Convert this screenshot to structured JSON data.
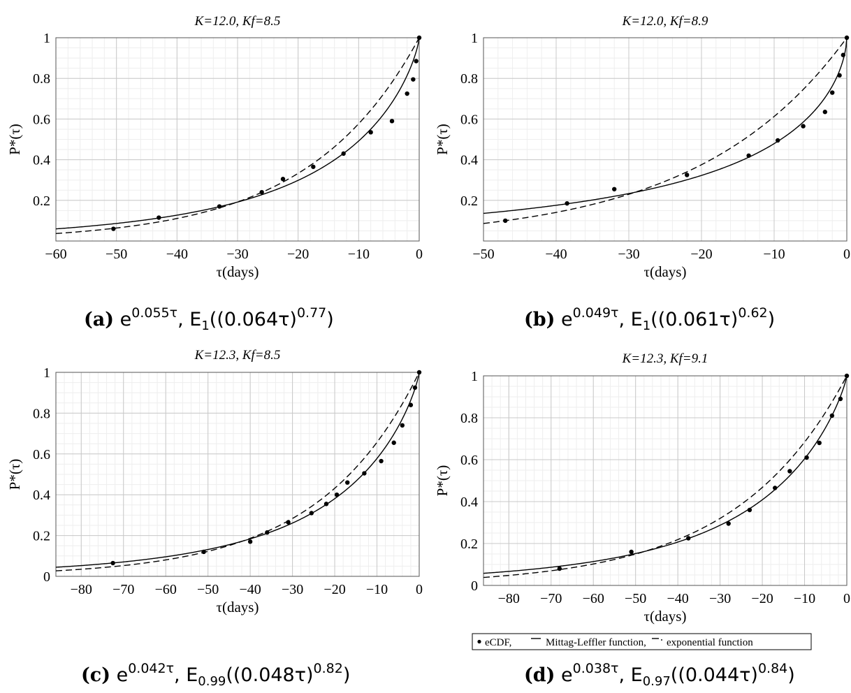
{
  "chart_data": [
    {
      "type": "scatter",
      "title": "K=12.0, Kf=8.5",
      "xlabel": "τ(days)",
      "ylabel": "P*(τ)",
      "xlim": [
        -60,
        0
      ],
      "ylim": [
        0,
        1
      ],
      "xticks": [
        -60,
        -50,
        -40,
        -30,
        -20,
        -10,
        0
      ],
      "yticks": [
        0.2,
        0.4,
        0.6,
        0.8,
        1
      ],
      "ytick_labels": [
        "0.2",
        "0.4",
        "0.6",
        "0.8",
        "1"
      ],
      "caption": {
        "label": "(a)",
        "exp_base": "e",
        "exp_sup": "0.055τ",
        "sep": ",",
        "ml_pre": "E",
        "ml_sub": "1",
        "ml_arg": "((0.064τ)",
        "ml_sup": "0.77",
        "ml_end": ")"
      },
      "exp_rate": 0.055,
      "ml": {
        "alpha": 1.0,
        "lambda": 0.064,
        "beta": 0.77
      },
      "series": [
        {
          "name": "eCDF",
          "x": [
            -50.5,
            -43.0,
            -33.0,
            -26.0,
            -22.5,
            -17.5,
            -12.5,
            -8.0,
            -4.5,
            -2.0,
            -1.0,
            -0.5,
            0.0
          ],
          "y": [
            0.06,
            0.115,
            0.17,
            0.24,
            0.305,
            0.365,
            0.43,
            0.535,
            0.59,
            0.725,
            0.795,
            0.885,
            1.0
          ]
        }
      ]
    },
    {
      "type": "scatter",
      "title": "K=12.0, Kf=8.9",
      "xlabel": "τ(days)",
      "ylabel": "P*(τ)",
      "xlim": [
        -50,
        0
      ],
      "ylim": [
        0,
        1
      ],
      "xticks": [
        -50,
        -40,
        -30,
        -20,
        -10,
        0
      ],
      "yticks": [
        0.2,
        0.4,
        0.6,
        0.8,
        1
      ],
      "ytick_labels": [
        "0.2",
        "0.4",
        "0.6",
        "0.8",
        "1"
      ],
      "caption": {
        "label": "(b)",
        "exp_base": "e",
        "exp_sup": "0.049τ",
        "sep": ",",
        "ml_pre": "E",
        "ml_sub": "1",
        "ml_arg": "((0.061τ)",
        "ml_sup": "0.62",
        "ml_end": ")"
      },
      "exp_rate": 0.049,
      "ml": {
        "alpha": 1.0,
        "lambda": 0.061,
        "beta": 0.62
      },
      "series": [
        {
          "name": "eCDF",
          "x": [
            -47.0,
            -38.5,
            -32.0,
            -22.0,
            -13.5,
            -9.5,
            -6.0,
            -3.0,
            -2.0,
            -1.0,
            -0.5,
            0.0
          ],
          "y": [
            0.1,
            0.185,
            0.255,
            0.325,
            0.42,
            0.495,
            0.565,
            0.635,
            0.73,
            0.815,
            0.915,
            1.0
          ]
        }
      ]
    },
    {
      "type": "scatter",
      "title": "K=12.3, Kf=8.5",
      "xlabel": "τ(days)",
      "ylabel": "P*(τ)",
      "xlim": [
        -86,
        0
      ],
      "ylim": [
        0,
        1
      ],
      "xticks": [
        -80,
        -70,
        -60,
        -50,
        -40,
        -30,
        -20,
        -10,
        0
      ],
      "yticks": [
        0,
        0.2,
        0.4,
        0.6,
        0.8,
        1
      ],
      "ytick_labels": [
        "0",
        "0.2",
        "0.4",
        "0.6",
        "0.8",
        "1"
      ],
      "caption": {
        "label": "(c)",
        "exp_base": "e",
        "exp_sup": "0.042τ",
        "sep": ",",
        "ml_pre": "E",
        "ml_sub": "0.99",
        "ml_arg": "((0.048τ)",
        "ml_sup": "0.82",
        "ml_end": ")"
      },
      "exp_rate": 0.042,
      "ml": {
        "alpha": 0.99,
        "lambda": 0.048,
        "beta": 0.82
      },
      "series": [
        {
          "name": "eCDF",
          "x": [
            -72.5,
            -51.0,
            -40.0,
            -36.0,
            -31.0,
            -25.5,
            -22.0,
            -19.5,
            -17.0,
            -13.0,
            -9.0,
            -6.0,
            -4.0,
            -2.0,
            -1.0,
            0.0
          ],
          "y": [
            0.065,
            0.12,
            0.17,
            0.215,
            0.265,
            0.31,
            0.355,
            0.4,
            0.46,
            0.505,
            0.565,
            0.655,
            0.74,
            0.84,
            0.925,
            1.0
          ]
        }
      ]
    },
    {
      "type": "scatter",
      "title": "K=12.3, Kf=9.1",
      "xlabel": "τ(days)",
      "ylabel": "P*(τ)",
      "xlim": [
        -86,
        0
      ],
      "ylim": [
        0,
        1
      ],
      "xticks": [
        -80,
        -70,
        -60,
        -50,
        -40,
        -30,
        -20,
        -10,
        0
      ],
      "yticks": [
        0,
        0.2,
        0.4,
        0.6,
        0.8,
        1
      ],
      "ytick_labels": [
        "0",
        "0.2",
        "0.4",
        "0.6",
        "0.8",
        "1"
      ],
      "caption": {
        "label": "(d)",
        "exp_base": "e",
        "exp_sup": "0.038τ",
        "sep": ",",
        "ml_pre": "E",
        "ml_sub": "0.97",
        "ml_arg": "((0.044τ)",
        "ml_sup": "0.84",
        "ml_end": ")"
      },
      "exp_rate": 0.038,
      "ml": {
        "alpha": 0.97,
        "lambda": 0.044,
        "beta": 0.84
      },
      "series": [
        {
          "name": "eCDF",
          "x": [
            -68.0,
            -51.0,
            -37.5,
            -28.0,
            -23.0,
            -17.0,
            -13.5,
            -9.5,
            -6.5,
            -3.5,
            -1.5,
            0.0
          ],
          "y": [
            0.08,
            0.16,
            0.225,
            0.295,
            0.36,
            0.465,
            0.545,
            0.61,
            0.68,
            0.81,
            0.89,
            1.0
          ]
        }
      ]
    }
  ],
  "legend": {
    "ecdf": "eCDF,",
    "mittag": "Mittag-Leffler function,",
    "exponential": "exponential function"
  }
}
